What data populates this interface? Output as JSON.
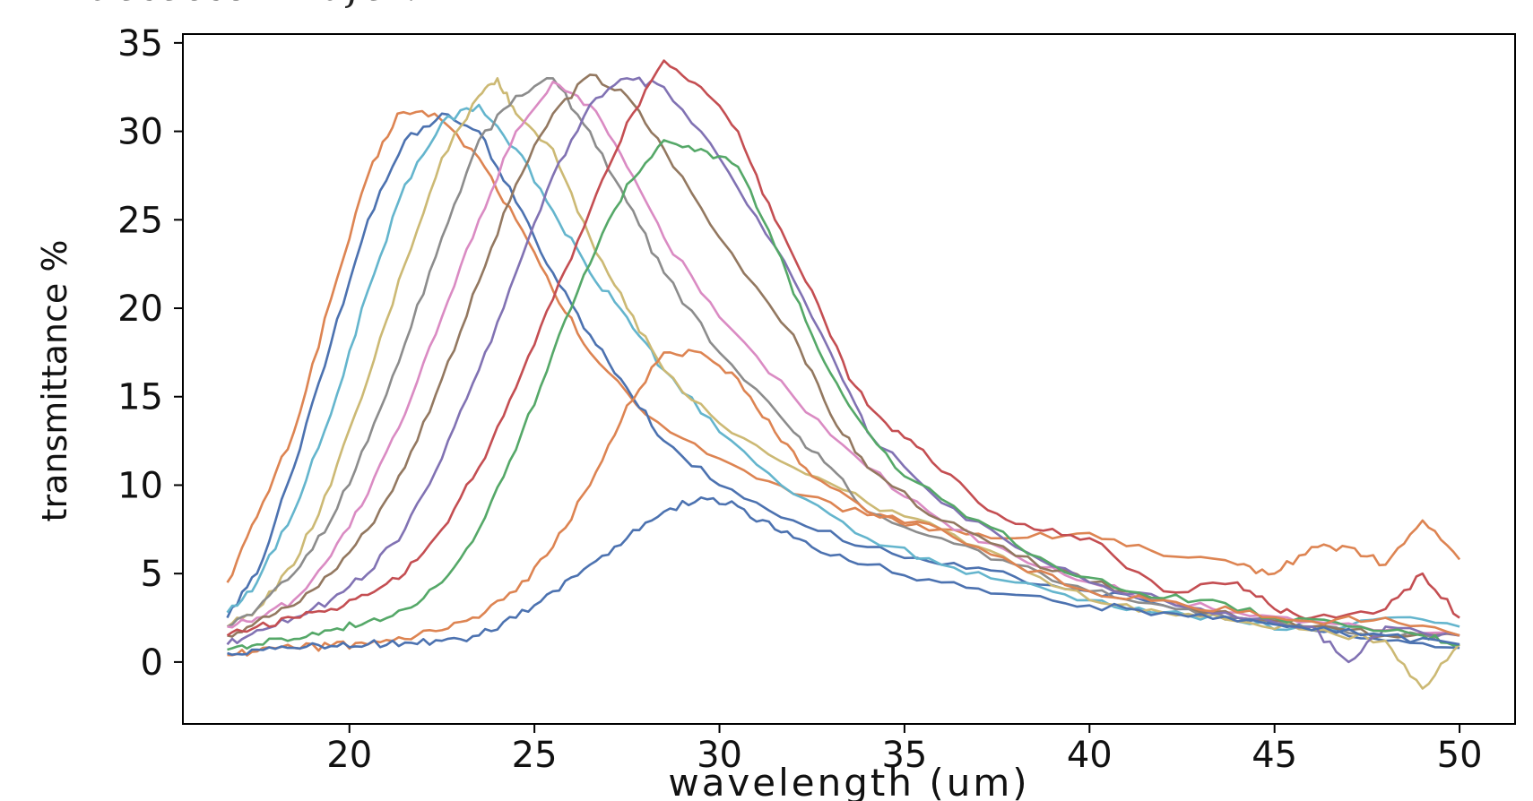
{
  "caption_fragment": "detector wafer.",
  "chart_data": {
    "type": "line",
    "xlabel": "wavelength (um)",
    "ylabel": "transmittance %",
    "xlim": [
      15.5,
      51.5
    ],
    "ylim": [
      -3.5,
      35.5
    ],
    "xticks": [
      20,
      25,
      30,
      35,
      40,
      45,
      50
    ],
    "yticks": [
      0,
      5,
      10,
      15,
      20,
      25,
      30,
      35
    ],
    "grid": false,
    "legend": "none",
    "series": [
      {
        "color": "#dd8452",
        "points": [
          [
            16.7,
            4.5
          ],
          [
            17.5,
            8.2
          ],
          [
            18.5,
            13
          ],
          [
            19.5,
            20.5
          ],
          [
            20.5,
            27.5
          ],
          [
            21.3,
            31
          ],
          [
            22.3,
            31
          ],
          [
            23.5,
            28.5
          ],
          [
            24.5,
            25
          ],
          [
            25.5,
            21
          ],
          [
            26.5,
            17.5
          ],
          [
            28,
            14
          ],
          [
            30,
            11.5
          ],
          [
            32,
            9.5
          ],
          [
            34,
            8.3
          ],
          [
            36,
            7.5
          ],
          [
            38,
            7
          ],
          [
            40,
            7.3
          ],
          [
            42,
            6
          ],
          [
            44,
            5.5
          ],
          [
            45,
            5
          ],
          [
            46,
            6.5
          ],
          [
            47,
            6.5
          ],
          [
            48,
            5.5
          ],
          [
            49,
            8
          ],
          [
            50,
            5.8
          ]
        ]
      },
      {
        "color": "#4c72b0",
        "points": [
          [
            16.7,
            2.5
          ],
          [
            17.5,
            5
          ],
          [
            18.5,
            11
          ],
          [
            19.5,
            18
          ],
          [
            20.5,
            25
          ],
          [
            21.5,
            29.5
          ],
          [
            22.5,
            31
          ],
          [
            23.5,
            30
          ],
          [
            24.5,
            26
          ],
          [
            25.5,
            22
          ],
          [
            26.5,
            18.5
          ],
          [
            27.5,
            15.5
          ],
          [
            28.5,
            12.5
          ],
          [
            30,
            10
          ],
          [
            32,
            8
          ],
          [
            34,
            6.5
          ],
          [
            36,
            5.5
          ],
          [
            38,
            4.8
          ],
          [
            40,
            4
          ],
          [
            42,
            3.2
          ],
          [
            44,
            2.5
          ],
          [
            46,
            1.8
          ],
          [
            48,
            1.2
          ],
          [
            50,
            0.8
          ]
        ]
      },
      {
        "color": "#64b5cd",
        "points": [
          [
            16.7,
            2.8
          ],
          [
            17.5,
            4.5
          ],
          [
            18.5,
            8.5
          ],
          [
            19.5,
            14
          ],
          [
            20.5,
            21
          ],
          [
            21.5,
            27
          ],
          [
            22.5,
            30.5
          ],
          [
            23.5,
            31.5
          ],
          [
            24.5,
            29
          ],
          [
            25.5,
            25.5
          ],
          [
            26.5,
            22
          ],
          [
            27.5,
            19.5
          ],
          [
            28.5,
            16.5
          ],
          [
            30,
            13
          ],
          [
            32,
            9.5
          ],
          [
            34,
            7
          ],
          [
            36,
            5.5
          ],
          [
            38,
            4.5
          ],
          [
            40,
            3.5
          ],
          [
            42,
            2.8
          ],
          [
            44,
            2.3
          ],
          [
            46,
            1.8
          ],
          [
            48,
            2.5
          ],
          [
            50,
            2
          ]
        ]
      },
      {
        "color": "#ccb974",
        "points": [
          [
            16.7,
            2
          ],
          [
            17.5,
            3
          ],
          [
            18.5,
            5.5
          ],
          [
            19.5,
            10
          ],
          [
            20.5,
            16
          ],
          [
            21.5,
            22.5
          ],
          [
            22.5,
            28.5
          ],
          [
            23.5,
            32
          ],
          [
            24,
            33
          ],
          [
            24.5,
            31
          ],
          [
            25.5,
            29
          ],
          [
            26.5,
            24
          ],
          [
            27.5,
            20
          ],
          [
            28.5,
            16.5
          ],
          [
            30,
            13.5
          ],
          [
            32,
            11
          ],
          [
            34,
            9
          ],
          [
            36,
            7.5
          ],
          [
            38,
            5.5
          ],
          [
            40,
            3.5
          ],
          [
            42,
            2.8
          ],
          [
            44,
            2.3
          ],
          [
            46,
            1.8
          ],
          [
            48,
            1.2
          ],
          [
            49,
            -1.5
          ],
          [
            50,
            1
          ]
        ]
      },
      {
        "color": "#8c8c8c",
        "points": [
          [
            16.7,
            2
          ],
          [
            17.5,
            3
          ],
          [
            18.5,
            5
          ],
          [
            19.5,
            8
          ],
          [
            20.5,
            12.5
          ],
          [
            21.5,
            18
          ],
          [
            22.5,
            24
          ],
          [
            23.5,
            29.5
          ],
          [
            24.5,
            32
          ],
          [
            25.5,
            33
          ],
          [
            26.5,
            30
          ],
          [
            27.5,
            26
          ],
          [
            28.5,
            22
          ],
          [
            30,
            17.5
          ],
          [
            32,
            13
          ],
          [
            33,
            11
          ],
          [
            34,
            8.5
          ],
          [
            36,
            7
          ],
          [
            38,
            5.5
          ],
          [
            40,
            4
          ],
          [
            42,
            3.2
          ],
          [
            44,
            2.5
          ],
          [
            46,
            2
          ],
          [
            48,
            1.5
          ],
          [
            50,
            1.5
          ]
        ]
      },
      {
        "color": "#da8bc3",
        "points": [
          [
            16.7,
            2
          ],
          [
            17.5,
            2.5
          ],
          [
            18.5,
            3.5
          ],
          [
            19.5,
            6
          ],
          [
            20.5,
            9.5
          ],
          [
            21.5,
            14
          ],
          [
            22.5,
            19.5
          ],
          [
            23.5,
            25
          ],
          [
            24.5,
            30
          ],
          [
            25.5,
            32.8
          ],
          [
            26.5,
            31.5
          ],
          [
            27.5,
            28
          ],
          [
            28.5,
            24
          ],
          [
            30,
            19.5
          ],
          [
            32,
            15
          ],
          [
            34,
            11
          ],
          [
            36,
            8
          ],
          [
            38,
            6
          ],
          [
            40,
            4.5
          ],
          [
            42,
            3.5
          ],
          [
            44,
            2.8
          ],
          [
            46,
            2.3
          ],
          [
            48,
            1.8
          ],
          [
            50,
            1.5
          ]
        ]
      },
      {
        "color": "#937860",
        "points": [
          [
            16.7,
            1.5
          ],
          [
            17.5,
            2.3
          ],
          [
            18.5,
            3.2
          ],
          [
            19.5,
            5
          ],
          [
            20.5,
            7.5
          ],
          [
            21.5,
            11
          ],
          [
            22.5,
            16
          ],
          [
            23.5,
            21.5
          ],
          [
            24.5,
            27
          ],
          [
            25.5,
            31
          ],
          [
            26.5,
            33.2
          ],
          [
            27.5,
            32
          ],
          [
            28.5,
            29
          ],
          [
            30,
            24
          ],
          [
            32,
            18.5
          ],
          [
            33,
            14
          ],
          [
            34,
            11
          ],
          [
            36,
            8
          ],
          [
            38,
            6
          ],
          [
            40,
            4.5
          ],
          [
            42,
            3.5
          ],
          [
            44,
            2.5
          ],
          [
            46,
            2
          ],
          [
            48,
            1.5
          ],
          [
            50,
            1.5
          ]
        ]
      },
      {
        "color": "#8172b3",
        "points": [
          [
            16.7,
            1
          ],
          [
            17.5,
            1.8
          ],
          [
            18.5,
            2.5
          ],
          [
            19.5,
            3.5
          ],
          [
            20.5,
            5
          ],
          [
            21.5,
            7.5
          ],
          [
            22.5,
            11.5
          ],
          [
            23.5,
            16.5
          ],
          [
            24.5,
            22
          ],
          [
            25.5,
            27.5
          ],
          [
            26.5,
            31.5
          ],
          [
            27.5,
            33
          ],
          [
            28.5,
            32.5
          ],
          [
            30,
            28.5
          ],
          [
            31.5,
            23.5
          ],
          [
            33,
            17.5
          ],
          [
            34,
            13
          ],
          [
            36,
            9
          ],
          [
            38,
            6.5
          ],
          [
            40,
            4.5
          ],
          [
            42,
            3.5
          ],
          [
            44,
            2.5
          ],
          [
            46,
            2
          ],
          [
            47,
            0
          ],
          [
            48,
            2
          ],
          [
            50,
            1.5
          ]
        ]
      },
      {
        "color": "#c44e52",
        "points": [
          [
            16.7,
            1.5
          ],
          [
            17.5,
            2
          ],
          [
            18.5,
            2.5
          ],
          [
            19.5,
            3
          ],
          [
            20.5,
            3.8
          ],
          [
            21.5,
            5
          ],
          [
            22.5,
            7.5
          ],
          [
            23.5,
            11
          ],
          [
            24.5,
            15.5
          ],
          [
            25.5,
            20.5
          ],
          [
            26.5,
            25.5
          ],
          [
            27.5,
            30.5
          ],
          [
            28.5,
            34
          ],
          [
            29.5,
            32.5
          ],
          [
            30.5,
            30
          ],
          [
            31.5,
            25
          ],
          [
            32.5,
            21
          ],
          [
            33.5,
            16
          ],
          [
            34.5,
            13.5
          ],
          [
            35.5,
            12
          ],
          [
            37,
            9
          ],
          [
            38.5,
            7.5
          ],
          [
            40,
            7
          ],
          [
            42,
            4
          ],
          [
            44,
            4.5
          ],
          [
            45,
            3
          ],
          [
            46,
            2.5
          ],
          [
            48,
            3
          ],
          [
            49,
            5
          ],
          [
            50,
            2.5
          ]
        ]
      },
      {
        "color": "#55a868",
        "points": [
          [
            16.7,
            0.7
          ],
          [
            17.5,
            1
          ],
          [
            18.5,
            1.3
          ],
          [
            19.5,
            1.8
          ],
          [
            20.5,
            2.3
          ],
          [
            21.5,
            3
          ],
          [
            22.5,
            4.5
          ],
          [
            23.5,
            7.5
          ],
          [
            24.5,
            12
          ],
          [
            25.5,
            17.5
          ],
          [
            26.5,
            22.5
          ],
          [
            27.5,
            27
          ],
          [
            28.5,
            29.5
          ],
          [
            29.5,
            29
          ],
          [
            30.5,
            28
          ],
          [
            31.5,
            23.5
          ],
          [
            32.5,
            18.5
          ],
          [
            33.5,
            14.5
          ],
          [
            35,
            10.5
          ],
          [
            37,
            8
          ],
          [
            39,
            5.5
          ],
          [
            41,
            4
          ],
          [
            43,
            3.5
          ],
          [
            45,
            2.5
          ],
          [
            47,
            2
          ],
          [
            49,
            1.5
          ],
          [
            50,
            1
          ]
        ]
      },
      {
        "color": "#dd8452",
        "points": [
          [
            16.7,
            0.4
          ],
          [
            17.5,
            0.6
          ],
          [
            18.5,
            0.8
          ],
          [
            19.5,
            0.9
          ],
          [
            20.5,
            1
          ],
          [
            21.5,
            1.3
          ],
          [
            22.5,
            1.8
          ],
          [
            23.5,
            2.5
          ],
          [
            24.5,
            4
          ],
          [
            25.5,
            6.5
          ],
          [
            26.5,
            10
          ],
          [
            27.5,
            14.5
          ],
          [
            28.5,
            17.5
          ],
          [
            29.5,
            17.5
          ],
          [
            30.5,
            16
          ],
          [
            31.5,
            13
          ],
          [
            32.5,
            10.5
          ],
          [
            34,
            8.5
          ],
          [
            36,
            7.5
          ],
          [
            38,
            5.5
          ],
          [
            40,
            4
          ],
          [
            42,
            3.5
          ],
          [
            44,
            2.8
          ],
          [
            46,
            2.3
          ],
          [
            48,
            2.5
          ],
          [
            50,
            1.5
          ]
        ]
      },
      {
        "color": "#4c72b0",
        "points": [
          [
            16.7,
            0.5
          ],
          [
            17.5,
            0.7
          ],
          [
            18.5,
            0.8
          ],
          [
            19.5,
            0.9
          ],
          [
            20.5,
            1
          ],
          [
            21.5,
            1.1
          ],
          [
            22.5,
            1.2
          ],
          [
            23.5,
            1.5
          ],
          [
            24.5,
            2.5
          ],
          [
            25.5,
            4
          ],
          [
            26.5,
            5.5
          ],
          [
            27.5,
            7
          ],
          [
            28.5,
            8.5
          ],
          [
            29.5,
            9.3
          ],
          [
            30.5,
            8.8
          ],
          [
            31.5,
            7.5
          ],
          [
            32.5,
            6.5
          ],
          [
            34,
            5.5
          ],
          [
            36,
            4.5
          ],
          [
            38,
            3.8
          ],
          [
            40,
            3.2
          ],
          [
            42,
            2.8
          ],
          [
            44,
            2.3
          ],
          [
            46,
            1.8
          ],
          [
            48,
            1.5
          ],
          [
            50,
            1
          ]
        ]
      }
    ]
  }
}
